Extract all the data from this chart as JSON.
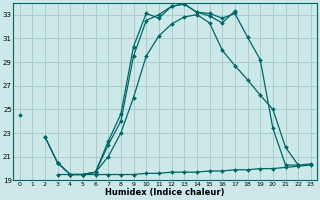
{
  "xlabel": "Humidex (Indice chaleur)",
  "bg_color": "#cce8e8",
  "grid_color": "#aacccc",
  "line_color": "#006666",
  "ylim": [
    19,
    34
  ],
  "xlim": [
    -0.5,
    23.5
  ],
  "yticks": [
    19,
    21,
    23,
    25,
    27,
    29,
    31,
    33
  ],
  "xticks": [
    0,
    1,
    2,
    3,
    4,
    5,
    6,
    7,
    8,
    9,
    10,
    11,
    12,
    13,
    14,
    15,
    16,
    17,
    18,
    19,
    20,
    21,
    22,
    23
  ],
  "curves": [
    {
      "x": [
        0,
        2,
        3,
        4,
        5,
        6,
        7,
        8,
        9,
        10,
        11,
        12,
        13,
        14,
        15,
        16,
        17
      ],
      "y": [
        24.5,
        22.7,
        20.5,
        19.5,
        19.5,
        19.7,
        22.3,
        24.6,
        30.3,
        33.1,
        32.7,
        33.7,
        33.9,
        33.2,
        32.9,
        32.3,
        33.3
      ],
      "has_gap_at_1": true
    },
    {
      "x": [
        2,
        3,
        4,
        5,
        6,
        7,
        8,
        9,
        10,
        11,
        12,
        13,
        14,
        15,
        16,
        17,
        18,
        19,
        20,
        21,
        22
      ],
      "y": [
        22.7,
        20.5,
        19.5,
        19.5,
        19.7,
        22.0,
        24.0,
        29.5,
        32.5,
        33.0,
        33.7,
        33.9,
        33.2,
        33.1,
        32.7,
        33.1,
        31.1,
        29.2,
        23.4,
        20.3,
        20.3
      ]
    },
    {
      "x": [
        3,
        4,
        5,
        6,
        7,
        8,
        9,
        10,
        11,
        12,
        13,
        14,
        15,
        16,
        17,
        18,
        19,
        20,
        21,
        22,
        23
      ],
      "y": [
        20.5,
        19.5,
        19.5,
        19.7,
        21.0,
        23.0,
        26.0,
        29.5,
        31.2,
        32.2,
        32.8,
        33.0,
        32.3,
        30.0,
        28.7,
        27.5,
        26.2,
        25.0,
        21.8,
        20.3,
        20.4
      ]
    },
    {
      "x": [
        3,
        4,
        5,
        6,
        7,
        8,
        9,
        10,
        11,
        12,
        13,
        14,
        15,
        16,
        17,
        18,
        19,
        20,
        21,
        22,
        23
      ],
      "y": [
        19.5,
        19.5,
        19.5,
        19.5,
        19.5,
        19.5,
        19.5,
        19.6,
        19.6,
        19.7,
        19.7,
        19.7,
        19.8,
        19.8,
        19.9,
        19.9,
        20.0,
        20.0,
        20.1,
        20.2,
        20.3
      ]
    }
  ]
}
